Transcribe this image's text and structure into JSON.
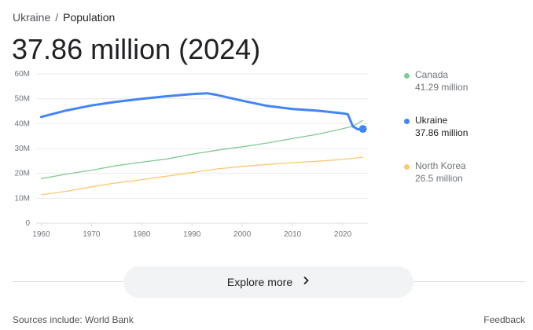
{
  "breadcrumb": {
    "parent": "Ukraine",
    "separator": "/",
    "current": "Population"
  },
  "headline": "37.86 million (2024)",
  "legend": [
    {
      "name": "Canada",
      "value": "41.29 million",
      "color": "#81c995",
      "active": false
    },
    {
      "name": "Ukraine",
      "value": "37.86 million",
      "color": "#4285f4",
      "active": true
    },
    {
      "name": "North Korea",
      "value": "26.5 million",
      "color": "#fcc870",
      "active": false
    }
  ],
  "explore": {
    "label": "Explore more",
    "icon": "chevron-right-icon"
  },
  "footer": {
    "sources": "Sources include: World Bank",
    "feedback": "Feedback"
  },
  "chart_data": {
    "type": "line",
    "xlim": [
      1959,
      2025
    ],
    "ylim": [
      0,
      60
    ],
    "x_ticks": [
      1960,
      1970,
      1980,
      1990,
      2000,
      2010,
      2020
    ],
    "y_ticks": [
      {
        "value": 0,
        "label": "0"
      },
      {
        "value": 10,
        "label": "10M"
      },
      {
        "value": 20,
        "label": "20M"
      },
      {
        "value": 30,
        "label": "30M"
      },
      {
        "value": 40,
        "label": "40M"
      },
      {
        "value": 50,
        "label": "50M"
      },
      {
        "value": 60,
        "label": "60M"
      }
    ],
    "grid": true,
    "series": [
      {
        "name": "Canada",
        "color": "#81c995",
        "points": [
          [
            1960,
            17.9
          ],
          [
            1965,
            19.7
          ],
          [
            1970,
            21.3
          ],
          [
            1975,
            23.1
          ],
          [
            1980,
            24.5
          ],
          [
            1985,
            25.8
          ],
          [
            1990,
            27.7
          ],
          [
            1995,
            29.3
          ],
          [
            2000,
            30.7
          ],
          [
            2005,
            32.2
          ],
          [
            2010,
            34.0
          ],
          [
            2015,
            35.7
          ],
          [
            2020,
            38.0
          ],
          [
            2022,
            38.9
          ],
          [
            2024,
            41.29
          ]
        ]
      },
      {
        "name": "North Korea",
        "color": "#fcc870",
        "points": [
          [
            1960,
            11.4
          ],
          [
            1965,
            12.8
          ],
          [
            1970,
            14.6
          ],
          [
            1975,
            16.2
          ],
          [
            1980,
            17.5
          ],
          [
            1985,
            18.9
          ],
          [
            1990,
            20.3
          ],
          [
            1995,
            21.8
          ],
          [
            2000,
            22.8
          ],
          [
            2005,
            23.6
          ],
          [
            2010,
            24.3
          ],
          [
            2015,
            24.9
          ],
          [
            2020,
            25.6
          ],
          [
            2024,
            26.5
          ]
        ]
      },
      {
        "name": "Ukraine",
        "color": "#4285f4",
        "points": [
          [
            1960,
            42.7
          ],
          [
            1965,
            45.3
          ],
          [
            1970,
            47.3
          ],
          [
            1975,
            48.8
          ],
          [
            1980,
            50.0
          ],
          [
            1985,
            51.0
          ],
          [
            1990,
            51.9
          ],
          [
            1993,
            52.2
          ],
          [
            1995,
            51.5
          ],
          [
            2000,
            49.2
          ],
          [
            2005,
            47.1
          ],
          [
            2010,
            45.9
          ],
          [
            2015,
            45.2
          ],
          [
            2020,
            44.1
          ],
          [
            2021,
            43.8
          ],
          [
            2022,
            38.9
          ],
          [
            2023,
            37.7
          ],
          [
            2024,
            37.86
          ]
        ]
      }
    ],
    "highlight": {
      "series": "Ukraine",
      "x": 2024,
      "y": 37.86
    }
  }
}
